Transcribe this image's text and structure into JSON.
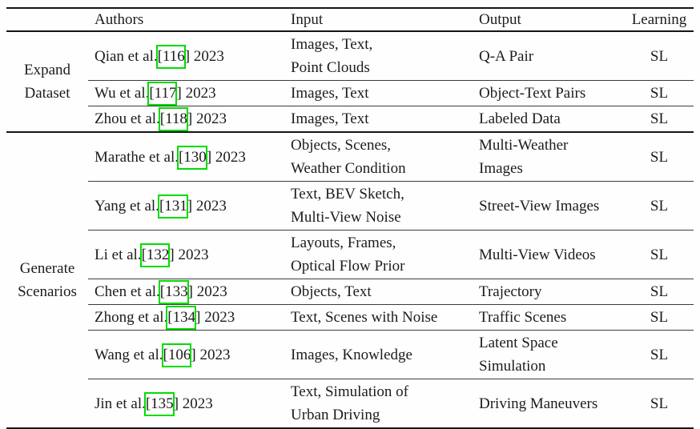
{
  "colors": {
    "citation_box": "#00dc00",
    "text": "#1c1c1c",
    "rule": "#161616"
  },
  "table": {
    "columns": [
      "Authors",
      "Input",
      "Output",
      "Learning"
    ],
    "groups": [
      {
        "label_lines": [
          "Expand",
          "Dataset"
        ],
        "rows": [
          {
            "author": "Qian et al.",
            "cite": "[116",
            "cite_close": "]",
            "year": "2023",
            "input": [
              "Images, Text,",
              "Point Clouds"
            ],
            "output": [
              "Q-A Pair"
            ],
            "learning": "SL"
          },
          {
            "author": "Wu et al.",
            "cite": "[117",
            "cite_close": "]",
            "year": "2023",
            "input": [
              "Images, Text"
            ],
            "output": [
              "Object-Text Pairs"
            ],
            "learning": "SL"
          },
          {
            "author": "Zhou et al.",
            "cite": "[118",
            "cite_close": "]",
            "year": "2023",
            "input": [
              "Images, Text"
            ],
            "output": [
              "Labeled Data"
            ],
            "learning": "SL"
          }
        ]
      },
      {
        "label_lines": [
          "Generate",
          "Scenarios"
        ],
        "rows": [
          {
            "author": "Marathe et al.",
            "cite": "[130",
            "cite_close": "]",
            "year": "2023",
            "input": [
              "Objects, Scenes,",
              "Weather Condition"
            ],
            "output": [
              "Multi-Weather",
              "Images"
            ],
            "learning": "SL"
          },
          {
            "author": "Yang et al.",
            "cite": "[131",
            "cite_close": "]",
            "year": "2023",
            "input": [
              "Text, BEV Sketch,",
              "Multi-View Noise"
            ],
            "output": [
              "Street-View Images"
            ],
            "learning": "SL"
          },
          {
            "author": "Li et al.",
            "cite": "[132",
            "cite_close": "]",
            "year": "2023",
            "input": [
              "Layouts, Frames,",
              "Optical Flow Prior"
            ],
            "output": [
              "Multi-View Videos"
            ],
            "learning": "SL"
          },
          {
            "author": "Chen et al.",
            "cite": "[133",
            "cite_close": "]",
            "year": "2023",
            "input": [
              "Objects, Text"
            ],
            "output": [
              "Trajectory"
            ],
            "learning": "SL"
          },
          {
            "author": "Zhong et al.",
            "cite": "[134",
            "cite_close": "]",
            "year": "2023",
            "input": [
              "Text, Scenes with Noise"
            ],
            "output": [
              "Traffic Scenes"
            ],
            "learning": "SL"
          },
          {
            "author": "Wang et al.",
            "cite": "[106",
            "cite_close": "]",
            "year": "2023",
            "input": [
              "Images, Knowledge"
            ],
            "output": [
              "Latent Space",
              "Simulation"
            ],
            "learning": "SL"
          },
          {
            "author": "Jin et al.",
            "cite": "[135",
            "cite_close": "]",
            "year": "2023",
            "input": [
              "Text, Simulation of",
              "Urban Driving"
            ],
            "output": [
              "Driving Maneuvers"
            ],
            "learning": "SL"
          }
        ]
      }
    ]
  }
}
